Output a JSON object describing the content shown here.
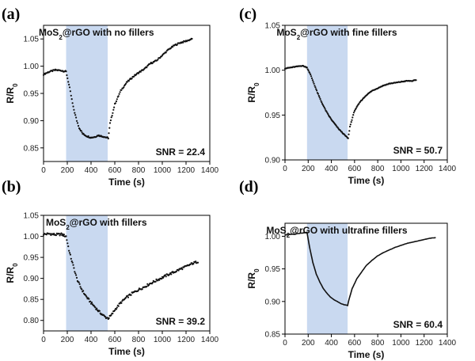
{
  "chart_data": [
    {
      "panel_label": "(a)",
      "type": "scatter",
      "title_main": "MoS",
      "title_sub": "2",
      "title_rest": "@rGO with no fillers",
      "xlabel": "Time (s)",
      "ylabel_main": "R/R",
      "ylabel_sub": "0",
      "xlim": [
        0,
        1400
      ],
      "ylim": [
        0.825,
        1.075
      ],
      "xticks": [
        "0",
        "200",
        "400",
        "600",
        "800",
        "1000",
        "1200",
        "1400"
      ],
      "yticks": [
        "0.85",
        "0.90",
        "0.95",
        "1.00",
        "1.05"
      ],
      "highlight": [
        190,
        540
      ],
      "snr": "SNR = 22.4",
      "x": [
        0,
        50,
        100,
        150,
        190,
        220,
        250,
        280,
        300,
        330,
        360,
        400,
        430,
        460,
        500,
        530,
        545,
        560,
        600,
        650,
        700,
        750,
        800,
        850,
        900,
        950,
        1000,
        1050,
        1100,
        1150,
        1200,
        1250
      ],
      "y": [
        0.985,
        0.99,
        0.993,
        0.992,
        0.99,
        0.96,
        0.925,
        0.9,
        0.887,
        0.876,
        0.872,
        0.869,
        0.87,
        0.873,
        0.871,
        0.869,
        0.868,
        0.895,
        0.93,
        0.955,
        0.97,
        0.98,
        0.988,
        0.995,
        1.005,
        1.01,
        1.02,
        1.03,
        1.038,
        1.043,
        1.046,
        1.05
      ]
    },
    {
      "panel_label": "(b)",
      "type": "scatter",
      "title_main": "MoS",
      "title_sub": "2",
      "title_rest": "@rGO with fillers",
      "xlabel": "Time (s)",
      "ylabel_main": "R/R",
      "ylabel_sub": "0",
      "xlim": [
        0,
        1400
      ],
      "ylim": [
        0.775,
        1.05
      ],
      "xticks": [
        "0",
        "200",
        "400",
        "600",
        "800",
        "1000",
        "1200",
        "1400"
      ],
      "yticks": [
        "0.80",
        "0.85",
        "0.90",
        "0.95",
        "1.00",
        "1.05"
      ],
      "highlight": [
        190,
        540
      ],
      "snr": "SNR = 39.2",
      "x": [
        0,
        50,
        100,
        150,
        190,
        220,
        250,
        280,
        310,
        340,
        370,
        400,
        430,
        460,
        490,
        520,
        545,
        570,
        600,
        650,
        700,
        750,
        800,
        850,
        900,
        950,
        1000,
        1050,
        1100,
        1150,
        1200,
        1250,
        1300
      ],
      "y": [
        1.005,
        1.006,
        1.004,
        1.005,
        1.0,
        0.96,
        0.93,
        0.9,
        0.88,
        0.865,
        0.853,
        0.842,
        0.833,
        0.823,
        0.815,
        0.808,
        0.805,
        0.812,
        0.825,
        0.842,
        0.855,
        0.865,
        0.873,
        0.88,
        0.888,
        0.895,
        0.902,
        0.909,
        0.915,
        0.922,
        0.928,
        0.935,
        0.94
      ]
    },
    {
      "panel_label": "(c)",
      "type": "scatter",
      "title_main": "MoS",
      "title_sub": "2",
      "title_rest": "@rGO with fine fillers",
      "xlabel": "Time (s)",
      "ylabel_main": "R/R",
      "ylabel_sub": "0",
      "xlim": [
        0,
        1400
      ],
      "ylim": [
        0.9,
        1.05
      ],
      "xticks": [
        "0",
        "200",
        "400",
        "600",
        "800",
        "1000",
        "1200",
        "1400"
      ],
      "yticks": [
        "0.90",
        "0.95",
        "1.00",
        "1.05"
      ],
      "highlight": [
        190,
        540
      ],
      "snr": "SNR = 50.7",
      "x": [
        0,
        50,
        100,
        150,
        190,
        220,
        250,
        280,
        310,
        340,
        370,
        400,
        430,
        460,
        490,
        520,
        545,
        560,
        600,
        650,
        700,
        750,
        800,
        850,
        900,
        950,
        1000,
        1050,
        1100,
        1130
      ],
      "y": [
        1.002,
        1.003,
        1.004,
        1.005,
        1.003,
        0.995,
        0.985,
        0.975,
        0.966,
        0.958,
        0.951,
        0.945,
        0.94,
        0.935,
        0.931,
        0.927,
        0.924,
        0.937,
        0.955,
        0.965,
        0.972,
        0.977,
        0.98,
        0.983,
        0.985,
        0.986,
        0.987,
        0.988,
        0.988,
        0.989
      ]
    },
    {
      "panel_label": "(d)",
      "type": "line",
      "title_main": "MoS",
      "title_sub": "2",
      "title_rest": "@rGO with ultrafine fillers",
      "xlabel": "Time (s)",
      "ylabel_main": "R/R",
      "ylabel_sub": "0",
      "xlim": [
        0,
        1400
      ],
      "ylim": [
        0.85,
        1.02
      ],
      "xticks": [
        "0",
        "200",
        "400",
        "600",
        "800",
        "1000",
        "1200",
        "1400"
      ],
      "yticks": [
        "0.85",
        "0.90",
        "0.95",
        "1.00"
      ],
      "highlight": [
        190,
        540
      ],
      "snr": "SNR = 60.4",
      "x": [
        0,
        50,
        100,
        150,
        190,
        210,
        240,
        270,
        300,
        330,
        360,
        390,
        420,
        450,
        480,
        510,
        540,
        555,
        580,
        620,
        660,
        700,
        750,
        800,
        850,
        900,
        950,
        1000,
        1050,
        1100,
        1150,
        1200,
        1250,
        1300
      ],
      "y": [
        1.002,
        1.003,
        1.004,
        1.005,
        1.006,
        0.985,
        0.96,
        0.942,
        0.93,
        0.92,
        0.913,
        0.907,
        0.903,
        0.9,
        0.897,
        0.895,
        0.894,
        0.905,
        0.92,
        0.935,
        0.945,
        0.955,
        0.963,
        0.97,
        0.975,
        0.979,
        0.983,
        0.986,
        0.989,
        0.991,
        0.993,
        0.995,
        0.997,
        0.998
      ]
    }
  ]
}
